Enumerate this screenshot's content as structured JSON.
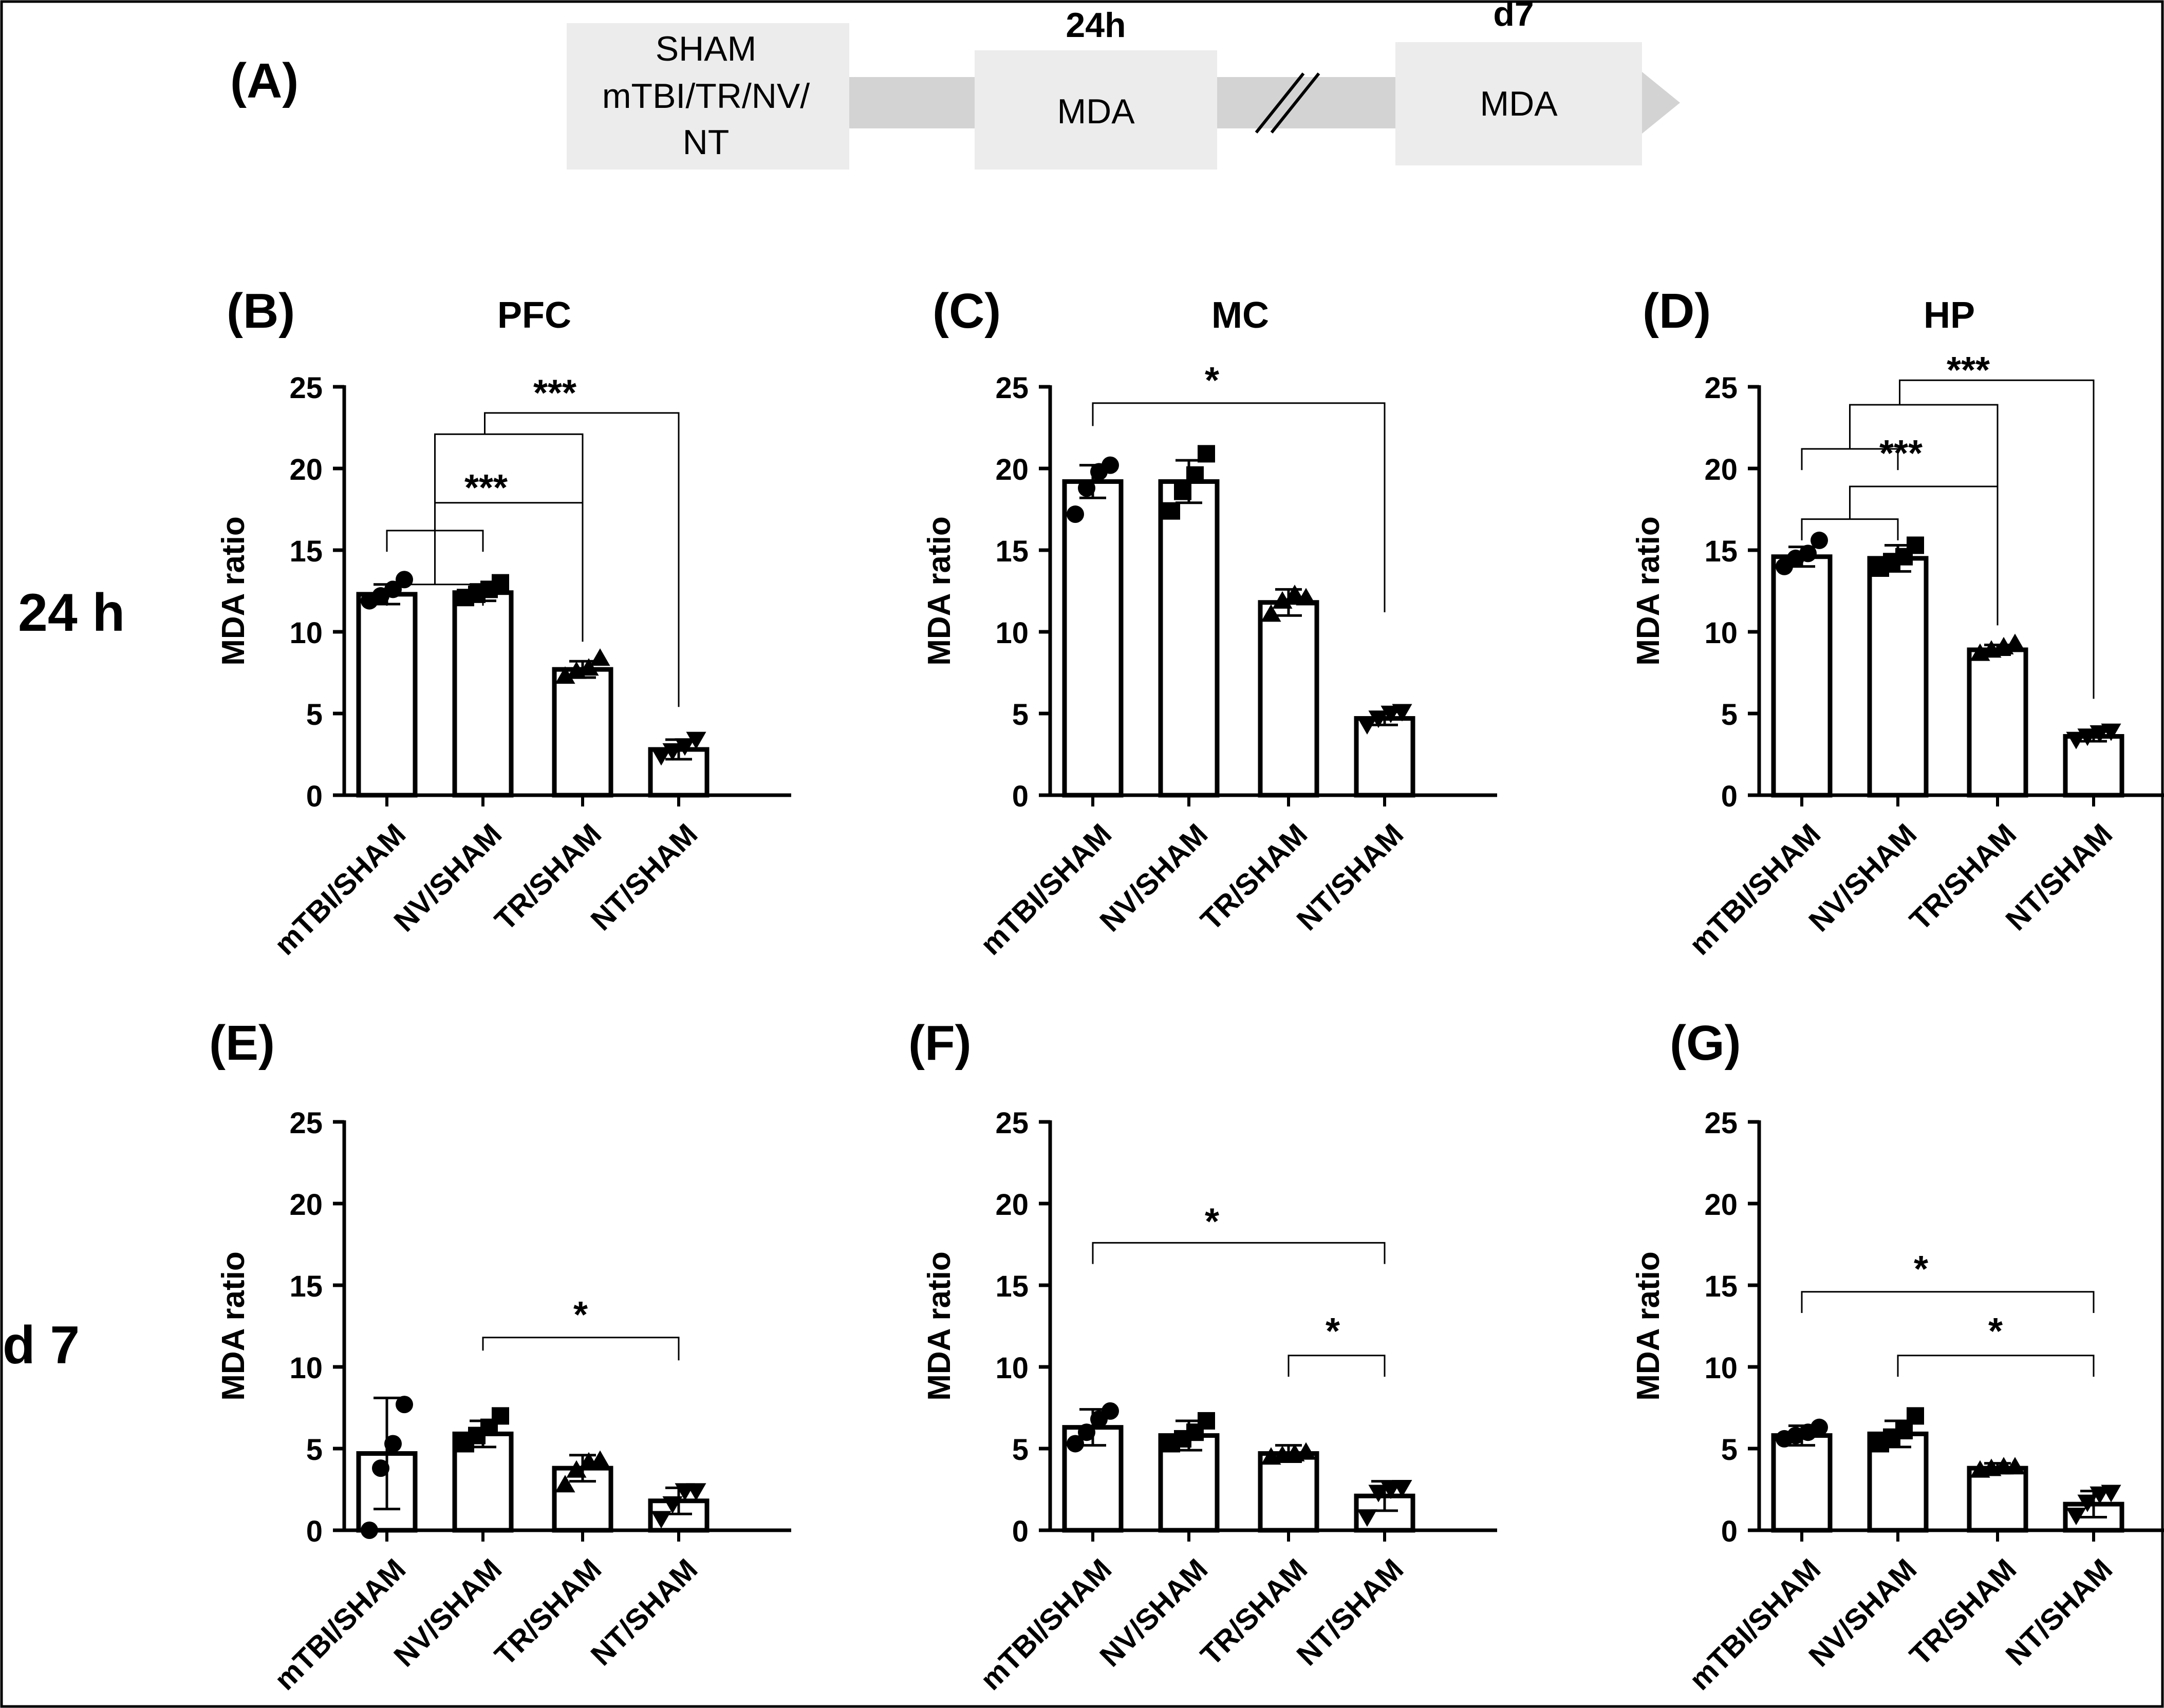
{
  "panel_a": {
    "label": "(A)",
    "box1_lines": [
      "SHAM",
      "mTBI/TR/NV/",
      "NT"
    ],
    "time1": "24h",
    "box2": "MDA",
    "time2": "d7",
    "box3": "MDA"
  },
  "row_labels": [
    "24 h",
    "d 7"
  ],
  "chart_data": [
    {
      "type": "bar",
      "panel_label": "(B)",
      "title": "PFC",
      "categories": [
        "mTBI/SHAM",
        "NV/SHAM",
        "TR/SHAM",
        "NT/SHAM"
      ],
      "values": [
        12.3,
        12.4,
        7.7,
        2.8
      ],
      "sem": [
        0.6,
        0.5,
        0.5,
        0.6
      ],
      "points": [
        [
          11.9,
          12.2,
          12.6,
          13.2
        ],
        [
          12.1,
          12.3,
          12.6,
          13.0
        ],
        [
          7.3,
          7.6,
          7.8,
          8.4
        ],
        [
          2.4,
          2.7,
          3.0,
          3.4
        ]
      ],
      "markers": [
        "circle",
        "square",
        "triangle-up",
        "triangle-down"
      ],
      "xlabel": "",
      "ylabel": "MDA ratio",
      "ylim": [
        0,
        25
      ],
      "yticks": [
        0,
        5,
        10,
        15,
        20,
        25
      ],
      "annotations": [
        {
          "text": "***",
          "desc": "(mTBI,NV) vs TR and NT"
        },
        {
          "text": "***",
          "desc": "(mTBI,NV) vs TR"
        }
      ]
    },
    {
      "type": "bar",
      "panel_label": "(C)",
      "title": "MC",
      "categories": [
        "mTBI/SHAM",
        "NV/SHAM",
        "TR/SHAM",
        "NT/SHAM"
      ],
      "values": [
        19.2,
        19.2,
        11.8,
        4.7
      ],
      "sem": [
        1.0,
        1.3,
        0.8,
        0.4
      ],
      "points": [
        [
          17.2,
          18.8,
          19.8,
          20.2
        ],
        [
          17.4,
          18.6,
          19.6,
          20.9
        ],
        [
          11.1,
          11.9,
          12.3,
          12.1
        ],
        [
          4.3,
          4.7,
          5.0,
          5.1
        ]
      ],
      "markers": [
        "circle",
        "square",
        "triangle-up",
        "triangle-down"
      ],
      "xlabel": "",
      "ylabel": "MDA ratio",
      "ylim": [
        0,
        25
      ],
      "yticks": [
        0,
        5,
        10,
        15,
        20,
        25
      ],
      "annotations": [
        {
          "text": "*",
          "desc": "mTBI vs NT"
        }
      ]
    },
    {
      "type": "bar",
      "panel_label": "(D)",
      "title": "HP",
      "categories": [
        "mTBI/SHAM",
        "NV/SHAM",
        "TR/SHAM",
        "NT/SHAM"
      ],
      "values": [
        14.6,
        14.5,
        8.9,
        3.6
      ],
      "sem": [
        0.6,
        0.8,
        0.3,
        0.3
      ],
      "points": [
        [
          14.0,
          14.5,
          14.8,
          15.6
        ],
        [
          13.9,
          14.3,
          14.6,
          15.3
        ],
        [
          8.7,
          8.9,
          9.1,
          9.3
        ],
        [
          3.4,
          3.6,
          3.8,
          3.9
        ]
      ],
      "markers": [
        "circle",
        "square",
        "triangle-up",
        "triangle-down"
      ],
      "xlabel": "",
      "ylabel": "MDA ratio",
      "ylim": [
        0,
        25
      ],
      "yticks": [
        0,
        5,
        10,
        15,
        20,
        25
      ],
      "annotations": [
        {
          "text": "***",
          "desc": "(mTBI,NV) vs TR and NT"
        },
        {
          "text": "***",
          "desc": "(mTBI,NV) vs TR"
        }
      ]
    },
    {
      "type": "bar",
      "panel_label": "(E)",
      "title": "",
      "categories": [
        "mTBI/SHAM",
        "NV/SHAM",
        "TR/SHAM",
        "NT/SHAM"
      ],
      "values": [
        4.7,
        5.9,
        3.8,
        1.8
      ],
      "sem": [
        3.4,
        0.8,
        0.8,
        0.8
      ],
      "points": [
        [
          0.0,
          3.8,
          5.3,
          7.7
        ],
        [
          5.3,
          5.8,
          6.3,
          7.0
        ],
        [
          2.8,
          3.7,
          4.2,
          4.3
        ],
        [
          0.7,
          1.6,
          2.4,
          2.4
        ]
      ],
      "markers": [
        "circle",
        "square",
        "triangle-up",
        "triangle-down"
      ],
      "xlabel": "",
      "ylabel": "MDA ratio",
      "ylim": [
        0,
        25
      ],
      "yticks": [
        0,
        5,
        10,
        15,
        20,
        25
      ],
      "annotations": [
        {
          "text": "*",
          "desc": "NV vs NT"
        }
      ]
    },
    {
      "type": "bar",
      "panel_label": "(F)",
      "title": "",
      "categories": [
        "mTBI/SHAM",
        "NV/SHAM",
        "TR/SHAM",
        "NT/SHAM"
      ],
      "values": [
        6.3,
        5.8,
        4.7,
        2.1
      ],
      "sem": [
        1.1,
        0.9,
        0.5,
        0.9
      ],
      "points": [
        [
          5.3,
          6.0,
          6.8,
          7.3
        ],
        [
          5.3,
          5.6,
          6.0,
          6.7
        ],
        [
          4.5,
          4.6,
          4.7,
          4.8
        ],
        [
          0.8,
          2.3,
          2.5,
          2.6
        ]
      ],
      "markers": [
        "circle",
        "square",
        "triangle-up",
        "triangle-down"
      ],
      "xlabel": "",
      "ylabel": "MDA ratio",
      "ylim": [
        0,
        25
      ],
      "yticks": [
        0,
        5,
        10,
        15,
        20,
        25
      ],
      "annotations": [
        {
          "text": "*",
          "desc": "mTBI vs NT"
        },
        {
          "text": "*",
          "desc": "TR vs NT"
        }
      ]
    },
    {
      "type": "bar",
      "panel_label": "(G)",
      "title": "",
      "categories": [
        "mTBI/SHAM",
        "NV/SHAM",
        "TR/SHAM",
        "NT/SHAM"
      ],
      "values": [
        5.8,
        5.9,
        3.8,
        1.6
      ],
      "sem": [
        0.6,
        0.8,
        0.3,
        0.8
      ],
      "points": [
        [
          5.6,
          5.8,
          6.0,
          6.3
        ],
        [
          5.3,
          5.7,
          6.1,
          7.0
        ],
        [
          3.7,
          3.8,
          3.9,
          3.9
        ],
        [
          0.9,
          1.7,
          2.2,
          2.3
        ]
      ],
      "markers": [
        "circle",
        "square",
        "triangle-up",
        "triangle-down"
      ],
      "xlabel": "",
      "ylabel": "MDA ratio",
      "ylim": [
        0,
        25
      ],
      "yticks": [
        0,
        5,
        10,
        15,
        20,
        25
      ],
      "annotations": [
        {
          "text": "*",
          "desc": "mTBI vs NT"
        },
        {
          "text": "*",
          "desc": "NV vs NT"
        }
      ]
    }
  ]
}
